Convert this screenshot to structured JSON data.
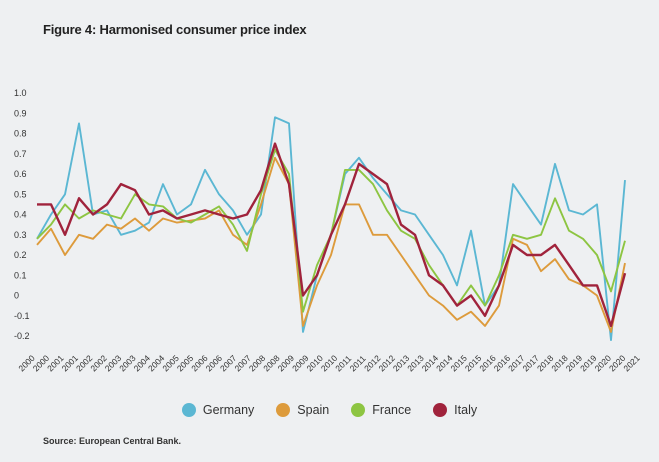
{
  "page": {
    "title": "Figure 4: Harmonised consumer price index",
    "source": "Source: European Central Bank."
  },
  "chart_data": {
    "type": "line",
    "title": "Figure 4: Harmonised consumer price index",
    "xlabel": "",
    "ylabel": "",
    "ylim": [
      -0.2,
      1.0
    ],
    "yticks": [
      "1.0",
      "0.9",
      "0.8",
      "0.7",
      "0.6",
      "0.5",
      "0.4",
      "0.3",
      "0.2",
      "0.1",
      "0",
      "-0.1",
      "-0.2"
    ],
    "xticks": [
      "2000",
      "2000",
      "2001",
      "2001",
      "2002",
      "2002",
      "2003",
      "2003",
      "2004",
      "2004",
      "2005",
      "2005",
      "2006",
      "2006",
      "2007",
      "2007",
      "2008",
      "2008",
      "2009",
      "2009",
      "2010",
      "2010",
      "2011",
      "2011",
      "2012",
      "2012",
      "2013",
      "2013",
      "2014",
      "2014",
      "2015",
      "2015",
      "2016",
      "2016",
      "2017",
      "2017",
      "2018",
      "2018",
      "2019",
      "2019",
      "2020",
      "2020",
      "2021"
    ],
    "grid": false,
    "legend_position": "bottom",
    "x": [
      2000.0,
      2000.5,
      2001.0,
      2001.5,
      2002.0,
      2002.5,
      2003.0,
      2003.5,
      2004.0,
      2004.5,
      2005.0,
      2005.5,
      2006.0,
      2006.5,
      2007.0,
      2007.5,
      2008.0,
      2008.5,
      2009.0,
      2009.5,
      2010.0,
      2010.5,
      2011.0,
      2011.5,
      2012.0,
      2012.5,
      2013.0,
      2013.5,
      2014.0,
      2014.5,
      2015.0,
      2015.5,
      2016.0,
      2016.5,
      2017.0,
      2017.5,
      2018.0,
      2018.5,
      2019.0,
      2019.5,
      2020.0,
      2020.5,
      2021.0
    ],
    "series": [
      {
        "name": "Germany",
        "color": "#5bb7d3",
        "values": [
          0.28,
          0.4,
          0.5,
          0.85,
          0.4,
          0.42,
          0.3,
          0.32,
          0.36,
          0.55,
          0.4,
          0.45,
          0.62,
          0.5,
          0.42,
          0.3,
          0.4,
          0.88,
          0.85,
          -0.18,
          0.1,
          0.3,
          0.6,
          0.68,
          0.58,
          0.5,
          0.42,
          0.4,
          0.3,
          0.2,
          0.05,
          0.32,
          -0.05,
          0.05,
          0.55,
          0.45,
          0.35,
          0.65,
          0.42,
          0.4,
          0.45,
          -0.22,
          0.57
        ]
      },
      {
        "name": "Spain",
        "color": "#dd9b3c",
        "values": [
          0.25,
          0.33,
          0.2,
          0.3,
          0.28,
          0.35,
          0.33,
          0.38,
          0.32,
          0.38,
          0.36,
          0.37,
          0.38,
          0.42,
          0.3,
          0.25,
          0.45,
          0.68,
          0.55,
          -0.15,
          0.05,
          0.2,
          0.45,
          0.45,
          0.3,
          0.3,
          0.2,
          0.1,
          0.0,
          -0.05,
          -0.12,
          -0.08,
          -0.15,
          -0.05,
          0.28,
          0.25,
          0.12,
          0.18,
          0.08,
          0.05,
          0.0,
          -0.18,
          0.16
        ]
      },
      {
        "name": "France",
        "color": "#8dc542",
        "values": [
          0.28,
          0.35,
          0.45,
          0.38,
          0.42,
          0.4,
          0.38,
          0.5,
          0.45,
          0.44,
          0.38,
          0.36,
          0.4,
          0.44,
          0.35,
          0.22,
          0.5,
          0.72,
          0.6,
          -0.08,
          0.15,
          0.3,
          0.62,
          0.62,
          0.55,
          0.42,
          0.32,
          0.28,
          0.15,
          0.05,
          -0.05,
          0.05,
          -0.05,
          0.1,
          0.3,
          0.28,
          0.3,
          0.48,
          0.32,
          0.28,
          0.2,
          0.02,
          0.27
        ]
      },
      {
        "name": "Italy",
        "color": "#a0233c",
        "values": [
          0.45,
          0.45,
          0.3,
          0.48,
          0.4,
          0.45,
          0.55,
          0.52,
          0.4,
          0.42,
          0.38,
          0.4,
          0.42,
          0.4,
          0.38,
          0.4,
          0.52,
          0.75,
          0.55,
          0.0,
          0.1,
          0.3,
          0.45,
          0.65,
          0.6,
          0.55,
          0.35,
          0.3,
          0.1,
          0.05,
          -0.05,
          0.0,
          -0.1,
          0.05,
          0.25,
          0.2,
          0.2,
          0.25,
          0.15,
          0.05,
          0.05,
          -0.15,
          0.11
        ]
      }
    ]
  }
}
